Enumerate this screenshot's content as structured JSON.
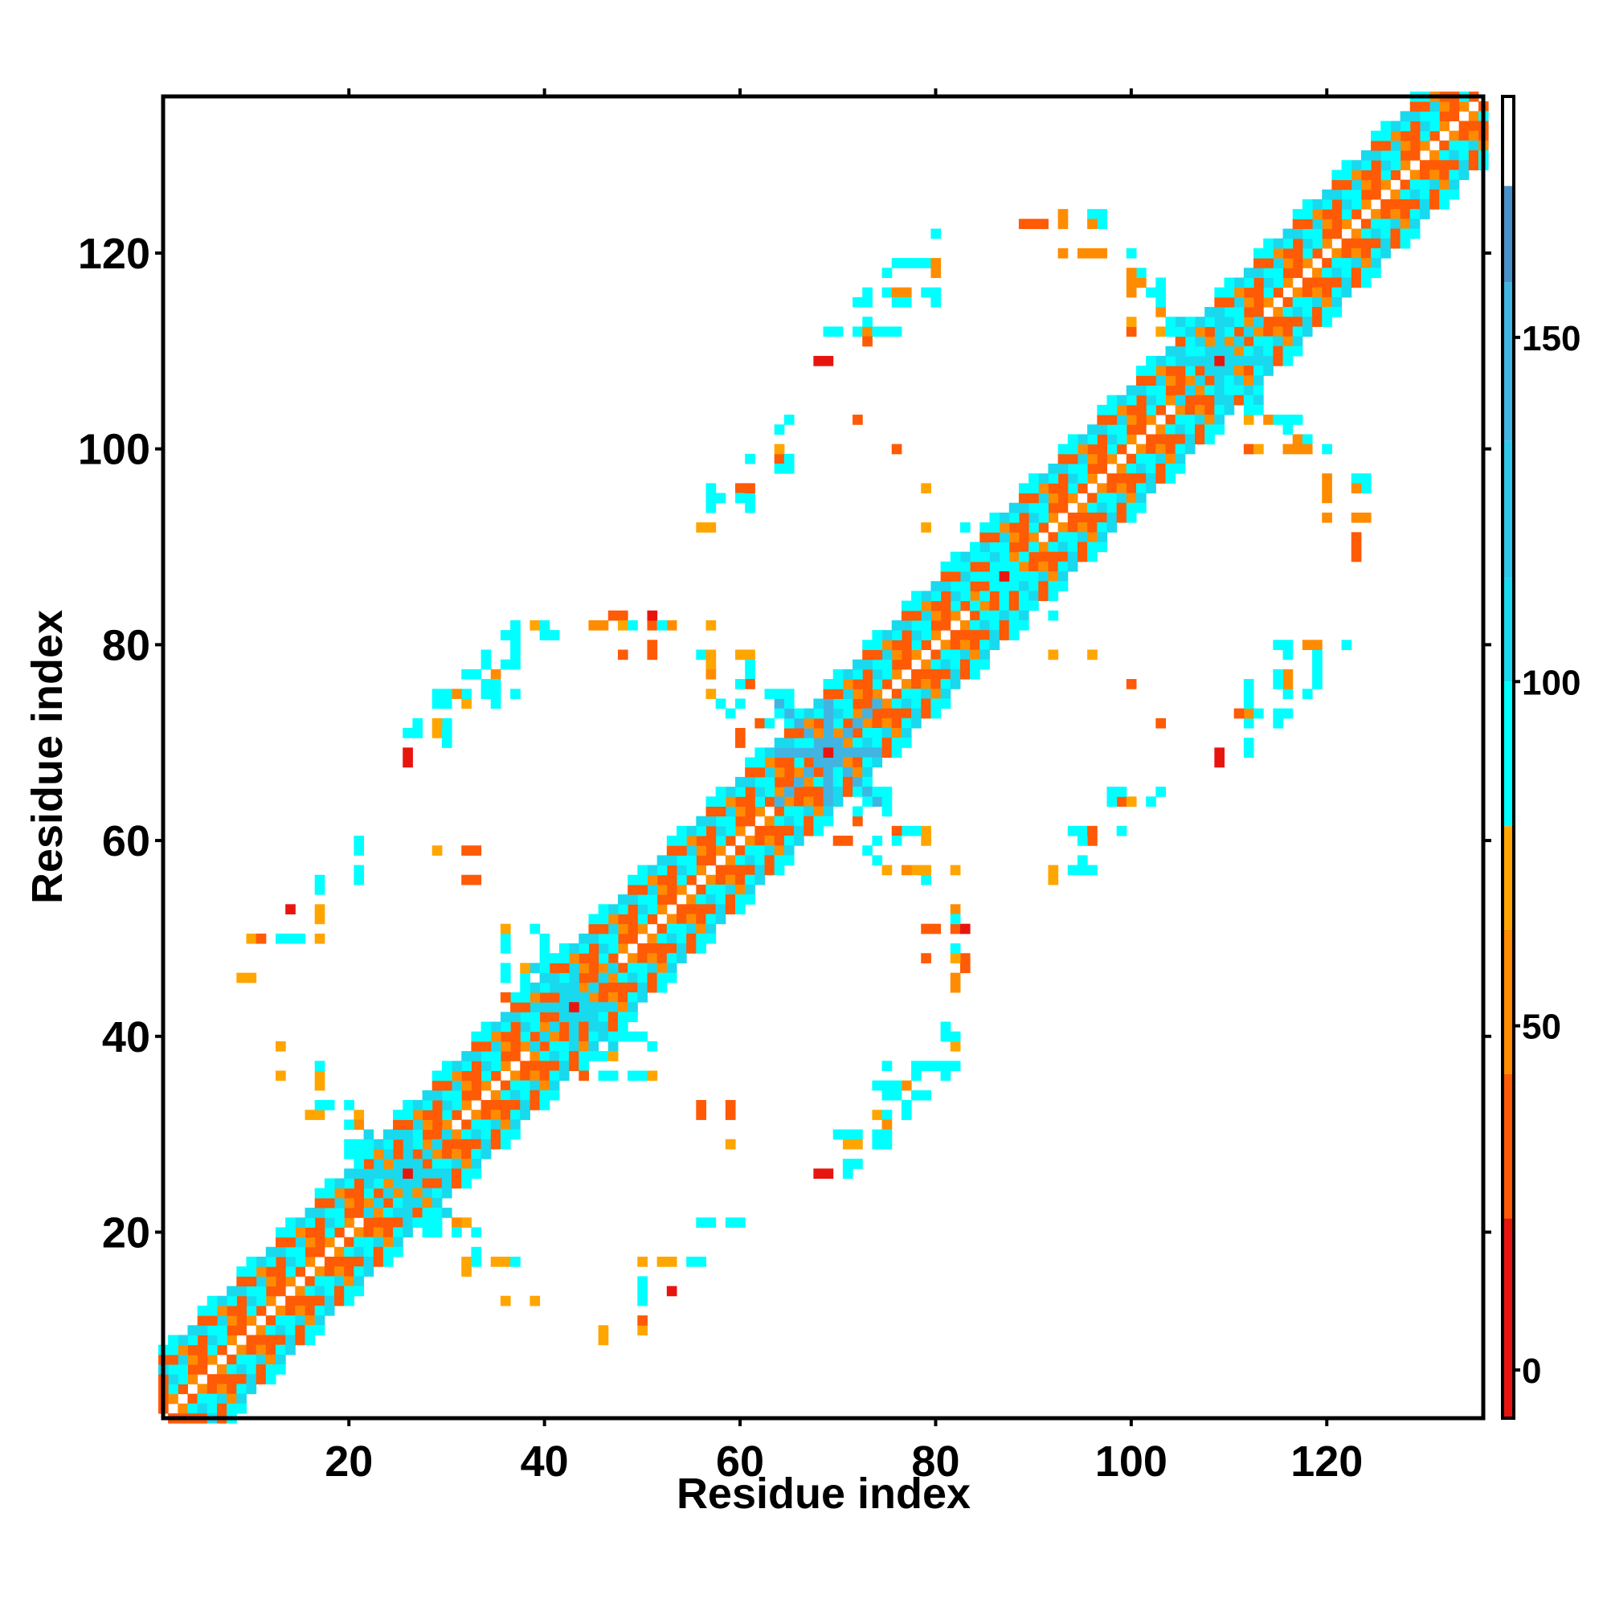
{
  "chart_data": {
    "type": "heatmap",
    "title": "",
    "xlabel": "Residue index",
    "ylabel": "Residue index",
    "xlim": [
      1,
      136
    ],
    "ylim": [
      1,
      136
    ],
    "x_ticks": [
      20,
      40,
      60,
      80,
      100,
      120
    ],
    "y_ticks": [
      20,
      40,
      60,
      80,
      100,
      120
    ],
    "colorbar": {
      "min": -7,
      "max": 185,
      "ticks": [
        0,
        50,
        100,
        150
      ],
      "segments": [
        {
          "from": -7,
          "to": 22,
          "color": "#e8150f"
        },
        {
          "from": 22,
          "to": 43,
          "color": "#ff5a05"
        },
        {
          "from": 43,
          "to": 64,
          "color": "#ff8c00"
        },
        {
          "from": 64,
          "to": 79,
          "color": "#ffa500"
        },
        {
          "from": 79,
          "to": 100,
          "color": "#00ffff"
        },
        {
          "from": 100,
          "to": 115,
          "color": "#19d9ee"
        },
        {
          "from": 115,
          "to": 135,
          "color": "#2fc8ea"
        },
        {
          "from": 135,
          "to": 158,
          "color": "#42b4e2"
        },
        {
          "from": 158,
          "to": 172,
          "color": "#4a90c8"
        },
        {
          "from": 172,
          "to": 185,
          "color": "#ffffff"
        }
      ]
    },
    "grid": false,
    "legend": "right",
    "palette": {
      "r": "#e8150f",
      "o": "#ff5a05",
      "d": "#ff8c00",
      "y": "#ffa500",
      "c": "#00ffff",
      "b": "#19d9ee",
      "s": "#42b4e2",
      "n": "#4a90c8"
    },
    "band": {
      "n": 136,
      "offsets": [
        {
          "d": 1,
          "pattern": "odod"
        },
        {
          "d": 2,
          "pattern": "ccoo"
        },
        {
          "d": 3,
          "pattern": "obcd"
        },
        {
          "d": 4,
          "pattern": "oocb"
        },
        {
          "d": 5,
          "pattern": "dcbo"
        },
        {
          "d": 6,
          "pattern": "cbbo"
        },
        {
          "d": 7,
          "pattern": "cc  "
        }
      ],
      "note": "helical band: cells (x=i, y=i+d) and (x=i+d, y=i), value class by pattern[(i+d) % 4]"
    },
    "hubs": [
      {
        "x": 26,
        "y": 26,
        "r": 4,
        "c": "b"
      },
      {
        "x": 43,
        "y": 43,
        "r": 4,
        "c": "b"
      },
      {
        "x": 69,
        "y": 69,
        "r": 5,
        "c": "s"
      },
      {
        "x": 87,
        "y": 87,
        "r": 3,
        "c": "c"
      },
      {
        "x": 109,
        "y": 109,
        "r": 4,
        "c": "b"
      }
    ],
    "cells": [
      [
        9,
        46,
        "y"
      ],
      [
        10,
        46,
        "y"
      ],
      [
        10,
        50,
        "y"
      ],
      [
        14,
        50,
        "y"
      ],
      [
        15,
        50,
        "c"
      ],
      [
        17,
        50,
        "y"
      ],
      [
        14,
        53,
        "r"
      ],
      [
        17,
        53,
        "y"
      ],
      [
        17,
        56,
        "c"
      ],
      [
        21,
        56,
        "c"
      ],
      [
        21,
        59,
        "c"
      ],
      [
        13,
        39,
        "y"
      ],
      [
        13,
        36,
        "y"
      ],
      [
        17,
        36,
        "c"
      ],
      [
        17,
        35,
        "y"
      ],
      [
        16,
        32,
        "y"
      ],
      [
        17,
        32,
        "y"
      ],
      [
        20,
        33,
        "c"
      ],
      [
        21,
        32,
        "y"
      ],
      [
        18,
        33,
        "c"
      ],
      [
        26,
        68,
        "r"
      ],
      [
        26,
        71,
        "c"
      ],
      [
        27,
        71,
        "c"
      ],
      [
        29,
        71,
        "y"
      ],
      [
        30,
        70,
        "c"
      ],
      [
        29,
        74,
        "c"
      ],
      [
        30,
        74,
        "c"
      ],
      [
        32,
        74,
        "y"
      ],
      [
        32,
        75,
        "c"
      ],
      [
        35,
        75,
        "c"
      ],
      [
        32,
        77,
        "c"
      ],
      [
        33,
        77,
        "c"
      ],
      [
        35,
        77,
        "y"
      ],
      [
        36,
        78,
        "c"
      ],
      [
        36,
        81,
        "c"
      ],
      [
        37,
        81,
        "c"
      ],
      [
        39,
        82,
        "y"
      ],
      [
        40,
        81,
        "c"
      ],
      [
        41,
        81,
        "c"
      ],
      [
        35,
        74,
        "c"
      ],
      [
        29,
        59,
        "y"
      ],
      [
        32,
        59,
        "o"
      ],
      [
        32,
        56,
        "o"
      ],
      [
        45,
        82,
        "d"
      ],
      [
        46,
        82,
        "d"
      ],
      [
        48,
        83,
        "o"
      ],
      [
        48,
        82,
        "y"
      ],
      [
        49,
        82,
        "c"
      ],
      [
        48,
        79,
        "o"
      ],
      [
        53,
        82,
        "d"
      ],
      [
        56,
        79,
        "y"
      ],
      [
        57,
        79,
        "y"
      ],
      [
        57,
        78,
        "d"
      ],
      [
        60,
        79,
        "c"
      ],
      [
        61,
        79,
        "c"
      ],
      [
        61,
        77,
        "c"
      ],
      [
        57,
        75,
        "y"
      ],
      [
        63,
        75,
        "c"
      ],
      [
        64,
        75,
        "c"
      ],
      [
        65,
        75,
        "c"
      ],
      [
        62,
        72,
        "o"
      ],
      [
        63,
        72,
        "c"
      ],
      [
        64,
        73,
        "c"
      ],
      [
        65,
        74,
        "c"
      ],
      [
        56,
        92,
        "y"
      ],
      [
        57,
        95,
        "c"
      ],
      [
        57,
        96,
        "c"
      ],
      [
        60,
        96,
        "c"
      ],
      [
        60,
        95,
        "c"
      ],
      [
        61,
        99,
        "c"
      ],
      [
        64,
        99,
        "y"
      ],
      [
        64,
        100,
        "y"
      ],
      [
        65,
        99,
        "c"
      ],
      [
        65,
        103,
        "c"
      ],
      [
        72,
        103,
        "d"
      ],
      [
        76,
        100,
        "d"
      ],
      [
        79,
        96,
        "y"
      ],
      [
        79,
        92,
        "y"
      ],
      [
        83,
        92,
        "c"
      ],
      [
        87,
        89,
        "c"
      ],
      [
        88,
        83,
        "c"
      ],
      [
        92,
        83,
        "c"
      ],
      [
        68,
        109,
        "r"
      ],
      [
        69,
        112,
        "c"
      ],
      [
        70,
        112,
        "c"
      ],
      [
        72,
        112,
        "c"
      ],
      [
        73,
        112,
        "y"
      ],
      [
        73,
        113,
        "c"
      ],
      [
        73,
        111,
        "c"
      ],
      [
        75,
        112,
        "c"
      ],
      [
        72,
        115,
        "c"
      ],
      [
        75,
        116,
        "c"
      ],
      [
        76,
        116,
        "d"
      ],
      [
        77,
        116,
        "c"
      ],
      [
        76,
        115,
        "c"
      ],
      [
        75,
        118,
        "c"
      ],
      [
        76,
        119,
        "c"
      ],
      [
        78,
        119,
        "c"
      ],
      [
        79,
        119,
        "c"
      ],
      [
        80,
        118,
        "c"
      ],
      [
        79,
        116,
        "c"
      ],
      [
        80,
        122,
        "c"
      ],
      [
        90,
        123,
        "o"
      ],
      [
        91,
        123,
        "o"
      ],
      [
        93,
        124,
        "d"
      ],
      [
        93,
        123,
        "d"
      ],
      [
        96,
        124,
        "c"
      ],
      [
        97,
        124,
        "c"
      ],
      [
        97,
        123,
        "c"
      ],
      [
        93,
        120,
        "o"
      ],
      [
        95,
        120,
        "d"
      ],
      [
        96,
        120,
        "d"
      ],
      [
        100,
        120,
        "c"
      ],
      [
        100,
        117,
        "c"
      ],
      [
        100,
        116,
        "d"
      ],
      [
        103,
        117,
        "c"
      ],
      [
        103,
        116,
        "c"
      ],
      [
        100,
        112,
        "o"
      ],
      [
        103,
        112,
        "y"
      ],
      [
        104,
        112,
        "c"
      ],
      [
        104,
        113,
        "c"
      ],
      [
        106,
        111,
        "c"
      ],
      [
        114,
        103,
        "d"
      ],
      [
        115,
        103,
        "c"
      ],
      [
        116,
        102,
        "c"
      ],
      [
        117,
        103,
        "c"
      ],
      [
        117,
        101,
        "d"
      ],
      [
        117,
        100,
        "d"
      ],
      [
        118,
        101,
        "c"
      ],
      [
        113,
        100,
        "y"
      ],
      [
        118,
        100,
        "d"
      ],
      [
        120,
        100,
        "c"
      ],
      [
        120,
        97,
        "d"
      ],
      [
        123,
        97,
        "c"
      ],
      [
        123,
        96,
        "d"
      ],
      [
        120,
        93,
        "d"
      ],
      [
        123,
        93,
        "d"
      ],
      [
        124,
        93,
        "d"
      ],
      [
        123,
        90,
        "o"
      ],
      [
        123,
        89,
        "o"
      ],
      [
        115,
        80,
        "c"
      ],
      [
        116,
        80,
        "c"
      ],
      [
        118,
        80,
        "d"
      ],
      [
        119,
        80,
        "d"
      ],
      [
        122,
        80,
        "c"
      ],
      [
        119,
        79,
        "c"
      ],
      [
        115,
        77,
        "c"
      ],
      [
        116,
        77,
        "d"
      ],
      [
        119,
        77,
        "c"
      ],
      [
        112,
        76,
        "c"
      ],
      [
        112,
        74,
        "c"
      ],
      [
        113,
        73,
        "c"
      ],
      [
        115,
        73,
        "c"
      ],
      [
        116,
        73,
        "c"
      ],
      [
        111,
        73,
        "o"
      ],
      [
        112,
        73,
        "d"
      ],
      [
        109,
        69,
        "r"
      ],
      [
        112,
        69,
        "c"
      ],
      [
        112,
        70,
        "c"
      ],
      [
        92,
        79,
        "y"
      ],
      [
        96,
        79,
        "y"
      ],
      [
        100,
        76,
        "o"
      ],
      [
        103,
        72,
        "o"
      ],
      [
        98,
        65,
        "c"
      ],
      [
        98,
        64,
        "c"
      ],
      [
        99,
        64,
        "o"
      ],
      [
        102,
        64,
        "c"
      ],
      [
        94,
        61,
        "c"
      ],
      [
        95,
        61,
        "c"
      ],
      [
        96,
        61,
        "o"
      ],
      [
        96,
        60,
        "o"
      ],
      [
        99,
        61,
        "c"
      ],
      [
        95,
        58,
        "c"
      ],
      [
        92,
        57,
        "y"
      ],
      [
        94,
        57,
        "c"
      ],
      [
        76,
        61,
        "o"
      ],
      [
        78,
        61,
        "c"
      ],
      [
        79,
        61,
        "y"
      ],
      [
        79,
        60,
        "y"
      ],
      [
        76,
        60,
        "c"
      ],
      [
        74,
        60,
        "c"
      ],
      [
        70,
        60,
        "o"
      ],
      [
        71,
        60,
        "o"
      ],
      [
        73,
        59,
        "c"
      ],
      [
        74,
        58,
        "c"
      ],
      [
        77,
        57,
        "d"
      ],
      [
        78,
        57,
        "y"
      ],
      [
        79,
        56,
        "c"
      ],
      [
        82,
        57,
        "y"
      ],
      [
        79,
        51,
        "o"
      ],
      [
        80,
        51,
        "o"
      ],
      [
        82,
        51,
        "o"
      ],
      [
        83,
        51,
        "r"
      ],
      [
        82,
        52,
        "c"
      ],
      [
        83,
        48,
        "o"
      ],
      [
        83,
        47,
        "o"
      ],
      [
        81,
        41,
        "c"
      ],
      [
        82,
        40,
        "c"
      ],
      [
        81,
        37,
        "c"
      ],
      [
        82,
        37,
        "c"
      ],
      [
        80,
        37,
        "c"
      ],
      [
        79,
        37,
        "c"
      ],
      [
        78,
        37,
        "c"
      ],
      [
        75,
        37,
        "c"
      ],
      [
        75,
        35,
        "c"
      ],
      [
        76,
        35,
        "c"
      ],
      [
        75,
        34,
        "c"
      ],
      [
        76,
        34,
        "c"
      ],
      [
        77,
        35,
        "d"
      ],
      [
        78,
        34,
        "c"
      ],
      [
        79,
        34,
        "c"
      ],
      [
        75,
        31,
        "d"
      ],
      [
        75,
        30,
        "c"
      ],
      [
        75,
        29,
        "c"
      ],
      [
        71,
        30,
        "c"
      ],
      [
        72,
        30,
        "c"
      ],
      [
        72,
        29,
        "y"
      ],
      [
        72,
        27,
        "c"
      ],
      [
        69,
        26,
        "r"
      ],
      [
        56,
        33,
        "o"
      ],
      [
        59,
        33,
        "o"
      ],
      [
        59,
        29,
        "y"
      ],
      [
        56,
        21,
        "c"
      ],
      [
        57,
        21,
        "c"
      ],
      [
        60,
        21,
        "c"
      ],
      [
        52,
        17,
        "y"
      ],
      [
        53,
        17,
        "y"
      ],
      [
        55,
        17,
        "c"
      ],
      [
        50,
        17,
        "y"
      ],
      [
        53,
        14,
        "r"
      ],
      [
        50,
        14,
        "c"
      ],
      [
        50,
        13,
        "c"
      ],
      [
        50,
        11,
        "o"
      ],
      [
        46,
        10,
        "y"
      ],
      [
        46,
        9,
        "y"
      ],
      [
        50,
        10,
        "y"
      ],
      [
        36,
        13,
        "y"
      ],
      [
        39,
        13,
        "y"
      ],
      [
        36,
        17,
        "y"
      ],
      [
        37,
        17,
        "c"
      ],
      [
        29,
        21,
        "c"
      ],
      [
        31,
        21,
        "d"
      ],
      [
        32,
        21,
        "y"
      ],
      [
        29,
        20,
        "c"
      ],
      [
        31,
        20,
        "c"
      ],
      [
        32,
        17,
        "y"
      ],
      [
        33,
        17,
        "c"
      ],
      [
        28,
        20,
        "c"
      ],
      [
        27,
        21,
        "c"
      ],
      [
        44,
        36,
        "o"
      ],
      [
        46,
        36,
        "c"
      ],
      [
        50,
        36,
        "c"
      ],
      [
        49,
        36,
        "c"
      ],
      [
        46,
        38,
        "c"
      ],
      [
        49,
        40,
        "c"
      ],
      [
        50,
        40,
        "c"
      ],
      [
        48,
        40,
        "c"
      ],
      [
        47,
        40,
        "c"
      ],
      [
        38,
        47,
        "y"
      ],
      [
        36,
        47,
        "c"
      ],
      [
        36,
        50,
        "c"
      ],
      [
        36,
        51,
        "y"
      ],
      [
        39,
        51,
        "c"
      ]
    ]
  }
}
